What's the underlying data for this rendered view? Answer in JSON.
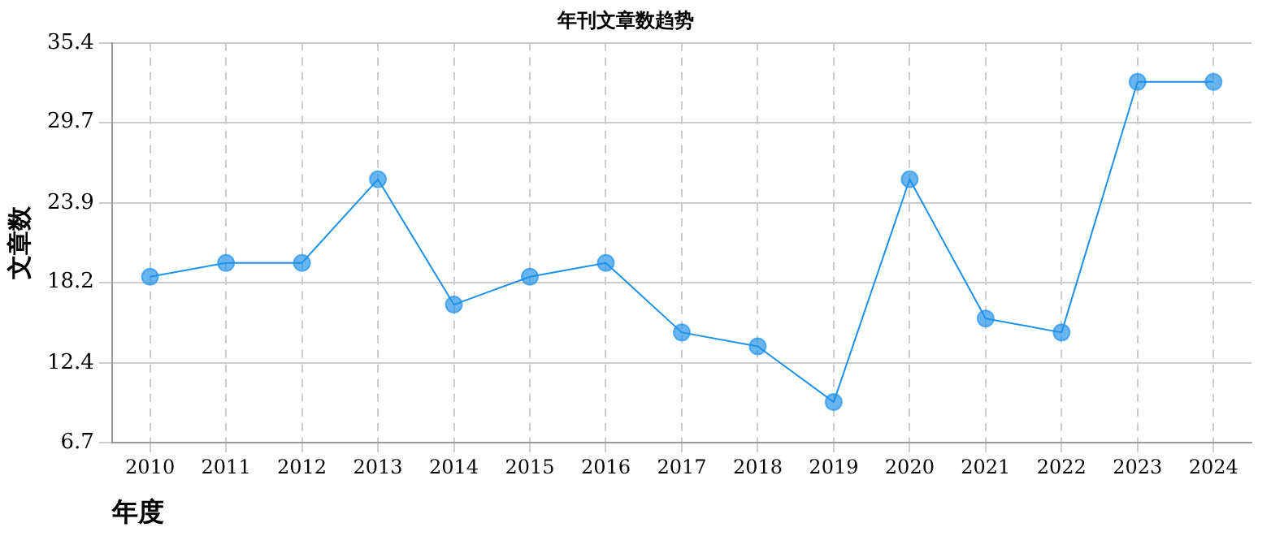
{
  "chart_data": {
    "type": "line",
    "title": "年刊文章数趋势",
    "xlabel": "年度",
    "ylabel": "文章数",
    "categories": [
      "2010",
      "2011",
      "2012",
      "2013",
      "2014",
      "2015",
      "2016",
      "2017",
      "2018",
      "2019",
      "2020",
      "2021",
      "2022",
      "2023",
      "2024"
    ],
    "series": [
      {
        "color": "#1e90e8",
        "values": [
          18.6,
          19.6,
          19.6,
          25.6,
          16.6,
          18.6,
          19.6,
          14.6,
          13.6,
          9.6,
          25.6,
          15.6,
          14.6,
          32.6,
          32.6
        ]
      }
    ],
    "ylim": [
      6.7,
      35.4
    ],
    "yticks": [
      6.7,
      12.4,
      18.2,
      23.9,
      29.7,
      35.4
    ],
    "grid": true,
    "legend": false,
    "marker": "circle",
    "line_style": "solid"
  }
}
